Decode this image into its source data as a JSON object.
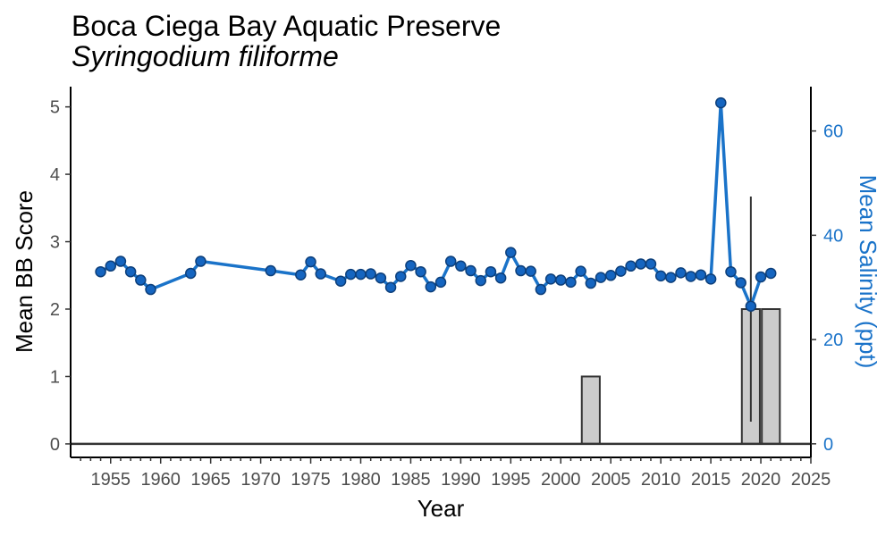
{
  "chart_data": {
    "type": "bar+line",
    "title": "Boca Ciega Bay Aquatic Preserve",
    "subtitle": "Syringodium filiforme",
    "xlabel": "Year",
    "ylabel": "Mean BB Score",
    "y2label": "Mean Salinity (ppt)",
    "xlim": [
      1951,
      2025
    ],
    "ylim": [
      -0.2,
      5.3
    ],
    "y2lim": [
      -2.6,
      68.5
    ],
    "x_ticks": [
      "1955",
      "1960",
      "1965",
      "1970",
      "1975",
      "1980",
      "1985",
      "1990",
      "1995",
      "2000",
      "2005",
      "2010",
      "2015",
      "2020",
      "2025"
    ],
    "y_ticks": [
      "0",
      "1",
      "2",
      "3",
      "4",
      "5"
    ],
    "y2_ticks": [
      "0",
      "20",
      "40",
      "60"
    ],
    "colors": {
      "bar_fill": "#cccccc",
      "bar_stroke": "#333333",
      "line": "#1a73c9",
      "point_fill": "#1565c0",
      "point_stroke": "#0d3f7a",
      "right_axis_text": "#1a73c9",
      "errorbar": "#333333"
    },
    "bars": [
      {
        "year": 2003,
        "value": 1
      },
      {
        "year": 2019,
        "value": 2
      },
      {
        "year": 2021,
        "value": 2
      }
    ],
    "errorbars": [
      {
        "year": 2019,
        "low": 0.33,
        "high": 3.67
      },
      {
        "year": 2021,
        "low": 2.0,
        "high": 2.0
      }
    ],
    "salinity": {
      "x": [
        1954,
        1955,
        1956,
        1957,
        1958,
        1959,
        1963,
        1964,
        1971,
        1974,
        1975,
        1976,
        1978,
        1979,
        1980,
        1981,
        1982,
        1983,
        1984,
        1985,
        1986,
        1987,
        1988,
        1989,
        1990,
        1991,
        1992,
        1993,
        1994,
        1995,
        1996,
        1997,
        1998,
        1999,
        2000,
        2001,
        2002,
        2003,
        2004,
        2005,
        2006,
        2007,
        2008,
        2009,
        2010,
        2011,
        2012,
        2013,
        2014,
        2015,
        2016,
        2017,
        2018,
        2019,
        2020,
        2021
      ],
      "y": [
        33.0,
        34.1,
        35.0,
        33.0,
        31.4,
        29.6,
        32.7,
        35.0,
        33.2,
        32.4,
        34.9,
        32.6,
        31.2,
        32.5,
        32.5,
        32.6,
        31.8,
        30.0,
        32.1,
        34.2,
        33.0,
        30.1,
        31.0,
        35.0,
        34.1,
        33.2,
        31.3,
        33.0,
        31.8,
        36.7,
        33.2,
        33.1,
        29.6,
        31.6,
        31.4,
        31.0,
        33.1,
        30.8,
        31.9,
        32.3,
        33.1,
        34.1,
        34.5,
        34.5,
        32.2,
        31.9,
        32.8,
        32.1,
        32.4,
        31.6,
        65.4,
        33.0,
        30.9,
        26.4,
        32.0,
        32.7
      ]
    }
  }
}
